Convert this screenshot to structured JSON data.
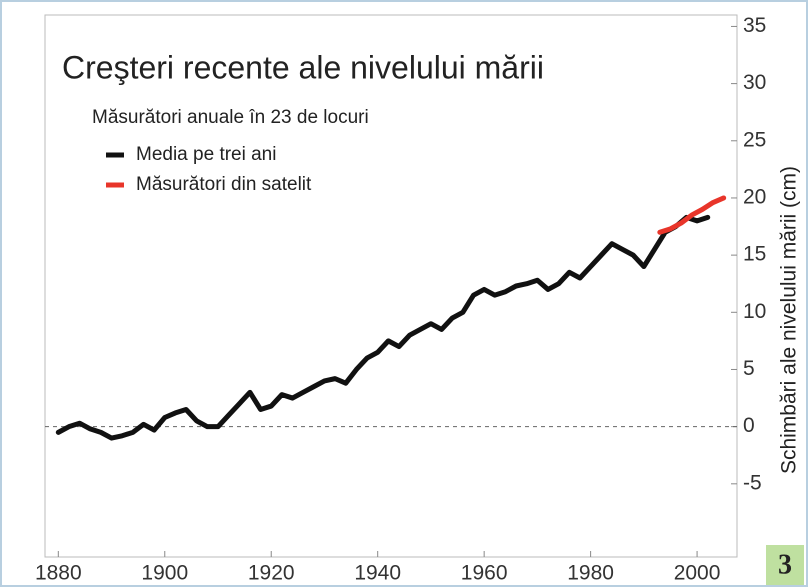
{
  "chart_data": {
    "type": "line",
    "title": "Creşteri recente ale nivelului mării",
    "subtitle": "Măsurători anuale în 23 de locuri",
    "y_label": "Schimbări ale nivelului mării (cm)",
    "xlim": [
      1877.5,
      2007.5
    ],
    "ylim": [
      -11.4,
      36
    ],
    "xticks": [
      1880,
      1900,
      1920,
      1940,
      1960,
      1980,
      2000
    ],
    "yticks": [
      -5,
      0,
      5,
      10,
      15,
      20,
      25,
      30,
      35
    ],
    "zero_line": true,
    "series": [
      {
        "name": "Media pe trei ani",
        "color": "#111111",
        "x": [
          1880,
          1882,
          1884,
          1886,
          1888,
          1890,
          1892,
          1894,
          1896,
          1898,
          1900,
          1902,
          1904,
          1906,
          1908,
          1910,
          1912,
          1914,
          1916,
          1918,
          1920,
          1922,
          1924,
          1926,
          1928,
          1930,
          1932,
          1934,
          1936,
          1938,
          1940,
          1942,
          1944,
          1946,
          1948,
          1950,
          1952,
          1954,
          1956,
          1958,
          1960,
          1962,
          1964,
          1966,
          1968,
          1970,
          1972,
          1974,
          1976,
          1978,
          1980,
          1982,
          1984,
          1986,
          1988,
          1990,
          1992,
          1994,
          1996,
          1998,
          2000,
          2002
        ],
        "values": [
          -0.5,
          0,
          0.3,
          -0.2,
          -0.5,
          -1,
          -0.8,
          -0.5,
          0.2,
          -0.3,
          0.8,
          1.2,
          1.5,
          0.5,
          0,
          0,
          1,
          2,
          3,
          1.5,
          1.8,
          2.8,
          2.5,
          3,
          3.5,
          4,
          4.2,
          3.8,
          5,
          6,
          6.5,
          7.5,
          7,
          8,
          8.5,
          9,
          8.5,
          9.5,
          10,
          11.5,
          12,
          11.5,
          11.8,
          12.3,
          12.5,
          12.8,
          12,
          12.5,
          13.5,
          13,
          14,
          15,
          16,
          15.5,
          15,
          14,
          15.5,
          17,
          17.5,
          18.3,
          18,
          18.3
        ]
      },
      {
        "name": "Măsurători din satelit",
        "color": "#e8352a",
        "x": [
          1993,
          1995,
          1997,
          1999,
          2001,
          2003,
          2005
        ],
        "values": [
          17,
          17.3,
          17.8,
          18.5,
          19,
          19.6,
          20
        ]
      }
    ]
  },
  "page_number": "3"
}
